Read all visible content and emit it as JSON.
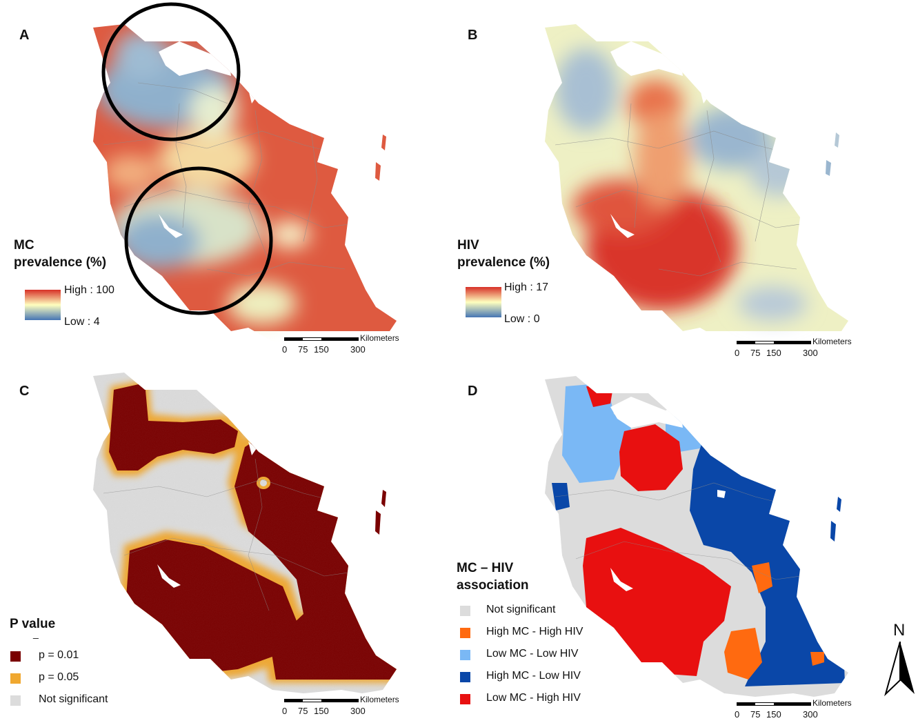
{
  "panels": {
    "a": {
      "letter": "A",
      "legend_title": "MC\nprevalence (%)",
      "high_label": "High : 100",
      "low_label": "Low : 4"
    },
    "b": {
      "letter": "B",
      "legend_title": "HIV\nprevalence (%)",
      "high_label": "High : 17",
      "low_label": "Low : 0"
    },
    "c": {
      "letter": "C",
      "legend_title": "P value",
      "legend_dash": "_",
      "items": [
        {
          "label": "p = 0.01",
          "color": "#7a0000"
        },
        {
          "label": "p = 0.05",
          "color": "#f0a830"
        },
        {
          "label": "Not significant",
          "color": "#dcdcdc"
        }
      ]
    },
    "d": {
      "letter": "D",
      "legend_title": "MC – HIV\nassociation",
      "items": [
        {
          "label": "Not significant",
          "color": "#dcdcdc"
        },
        {
          "label": "High MC - High HIV",
          "color": "#ff6a10"
        },
        {
          "label": "Low MC - Low HIV",
          "color": "#7ab8f5"
        },
        {
          "label": "High MC - Low HIV",
          "color": "#0a47a8"
        },
        {
          "label": "Low MC - High HIV",
          "color": "#e81010"
        }
      ]
    }
  },
  "scalebar": {
    "unit": "Kilometers",
    "ticks": [
      "0",
      "75",
      "150",
      "300"
    ]
  },
  "north_arrow": {
    "label": "N"
  },
  "colors": {
    "ramp_high": "#d73027",
    "ramp_mid": "#ffffbf",
    "ramp_low": "#4575b4",
    "border": "#7a7a7a"
  }
}
